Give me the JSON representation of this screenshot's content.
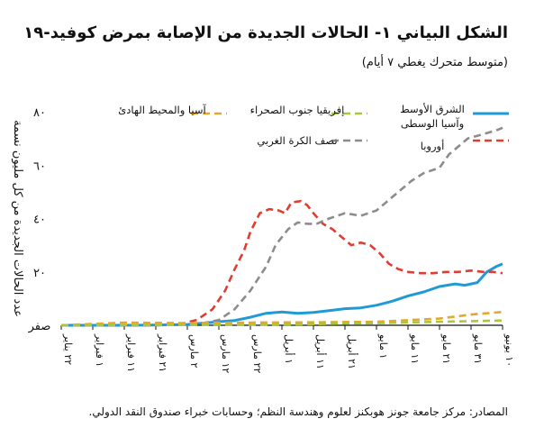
{
  "chart_data": {
    "type": "line",
    "title": "الشكل البياني ١- الحالات الجديدة من الإصابة بمرض كوفيد-١٩",
    "subtitle": "(متوسط متحرك يغطي ٧ أيام)",
    "ylabel": "عدد الحالات الجديدة من كل مليون نسمة",
    "ylim": [
      0,
      80
    ],
    "yticks": [
      {
        "value": 0,
        "label": "صفر"
      },
      {
        "value": 20,
        "label": "٢٠"
      },
      {
        "value": 40,
        "label": "٤٠"
      },
      {
        "value": 60,
        "label": "٦٠"
      },
      {
        "value": 80,
        "label": "٨٠"
      }
    ],
    "xlim": [
      0,
      140
    ],
    "xticks": [
      {
        "value": 0,
        "label": "٢٢ يناير"
      },
      {
        "value": 10,
        "label": "١ فبراير"
      },
      {
        "value": 20,
        "label": "١١ فبراير"
      },
      {
        "value": 30,
        "label": "٢١ فبراير"
      },
      {
        "value": 40,
        "label": "٢ مارس"
      },
      {
        "value": 50,
        "label": "١٢ مارس"
      },
      {
        "value": 60,
        "label": "٢٢ مارس"
      },
      {
        "value": 70,
        "label": "١ أبريل"
      },
      {
        "value": 80,
        "label": "١١ أبريل"
      },
      {
        "value": 90,
        "label": "٢١ أبريل"
      },
      {
        "value": 100,
        "label": "١ مايو"
      },
      {
        "value": 110,
        "label": "١١ مايو"
      },
      {
        "value": 120,
        "label": "٢١ مايو"
      },
      {
        "value": 130,
        "label": "٣١ مايو"
      },
      {
        "value": 140,
        "label": "١٠ يونيو"
      }
    ],
    "legend_placement": "top",
    "series": [
      {
        "name": "الشرق الأوسط وآسيا الوسطى",
        "color": "#1f9ad6",
        "style": "solid",
        "points": [
          [
            0,
            0
          ],
          [
            20,
            0
          ],
          [
            30,
            0.1
          ],
          [
            40,
            0.3
          ],
          [
            45,
            0.8
          ],
          [
            50,
            1.3
          ],
          [
            55,
            1.8
          ],
          [
            60,
            3
          ],
          [
            65,
            4.5
          ],
          [
            70,
            5
          ],
          [
            75,
            4.5
          ],
          [
            80,
            4.8
          ],
          [
            85,
            5.5
          ],
          [
            90,
            6.2
          ],
          [
            95,
            6.5
          ],
          [
            100,
            7.5
          ],
          [
            105,
            9
          ],
          [
            110,
            11
          ],
          [
            115,
            12.5
          ],
          [
            120,
            14.5
          ],
          [
            125,
            15.5
          ],
          [
            128,
            15
          ],
          [
            132,
            16
          ],
          [
            135,
            20
          ],
          [
            138,
            22
          ],
          [
            140,
            23
          ]
        ]
      },
      {
        "name": "أوروبا",
        "color": "#e03c31",
        "style": "dashed",
        "points": [
          [
            0,
            0
          ],
          [
            30,
            0
          ],
          [
            38,
            0.5
          ],
          [
            43,
            2
          ],
          [
            48,
            6
          ],
          [
            52,
            13
          ],
          [
            55,
            21
          ],
          [
            58,
            28
          ],
          [
            60,
            35
          ],
          [
            63,
            42
          ],
          [
            66,
            43.5
          ],
          [
            69,
            43
          ],
          [
            71,
            42
          ],
          [
            73,
            46
          ],
          [
            76,
            46.5
          ],
          [
            78,
            45
          ],
          [
            80,
            42
          ],
          [
            83,
            38
          ],
          [
            86,
            36
          ],
          [
            89,
            33
          ],
          [
            92,
            30
          ],
          [
            95,
            31
          ],
          [
            98,
            30
          ],
          [
            101,
            27
          ],
          [
            104,
            23
          ],
          [
            107,
            21
          ],
          [
            110,
            20
          ],
          [
            114,
            19.5
          ],
          [
            118,
            19.5
          ],
          [
            122,
            20
          ],
          [
            126,
            20
          ],
          [
            130,
            20.5
          ],
          [
            134,
            20
          ],
          [
            137,
            20
          ],
          [
            140,
            19.5
          ]
        ]
      },
      {
        "name": "نصف الكرة الغربي",
        "color": "#8c8c8c",
        "style": "dashed",
        "points": [
          [
            0,
            0
          ],
          [
            30,
            0
          ],
          [
            40,
            0.3
          ],
          [
            45,
            0.8
          ],
          [
            50,
            2
          ],
          [
            55,
            6
          ],
          [
            60,
            13
          ],
          [
            65,
            22
          ],
          [
            68,
            30
          ],
          [
            72,
            36
          ],
          [
            75,
            38.5
          ],
          [
            78,
            38
          ],
          [
            81,
            38
          ],
          [
            85,
            40
          ],
          [
            90,
            42
          ],
          [
            95,
            41
          ],
          [
            100,
            43
          ],
          [
            105,
            48
          ],
          [
            108,
            51
          ],
          [
            111,
            54
          ],
          [
            115,
            57
          ],
          [
            120,
            59
          ],
          [
            123,
            64
          ],
          [
            126,
            67
          ],
          [
            129,
            70
          ],
          [
            132,
            71
          ],
          [
            135,
            72
          ],
          [
            138,
            73
          ],
          [
            140,
            74
          ]
        ]
      },
      {
        "name": "آسيا والمحيط الهادئ",
        "color": "#e3a92e",
        "style": "dashed",
        "points": [
          [
            0,
            0
          ],
          [
            20,
            1
          ],
          [
            40,
            0.8
          ],
          [
            60,
            1
          ],
          [
            80,
            1.1
          ],
          [
            100,
            1.3
          ],
          [
            120,
            2.5
          ],
          [
            130,
            4
          ],
          [
            140,
            5
          ]
        ]
      },
      {
        "name": "إفريقيا جنوب الصحراء",
        "color": "#a8c83a",
        "style": "dashed",
        "points": [
          [
            0,
            0
          ],
          [
            30,
            0.1
          ],
          [
            60,
            0.2
          ],
          [
            80,
            0.4
          ],
          [
            100,
            0.8
          ],
          [
            120,
            1.3
          ],
          [
            140,
            1.8
          ]
        ]
      }
    ]
  },
  "source_text": "المصادر: مركز جامعة جونز هوبكنز لعلوم وهندسة النظم؛ وحسابات خبراء صندوق النقد الدولي."
}
